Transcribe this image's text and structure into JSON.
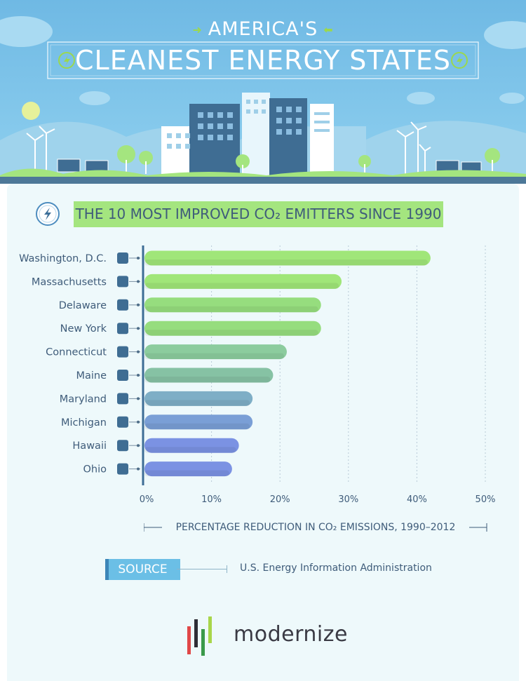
{
  "header": {
    "title_line1": "AMERICA'S",
    "title_line2": "CLEANEST ENERGY STATES"
  },
  "subtitle": "THE 10 MOST IMPROVED CO₂ EMITTERS SINCE 1990",
  "axis_caption": "PERCENTAGE REDUCTION IN CO₂ EMISSIONS, 1990–2012",
  "source": {
    "label": "SOURCE",
    "text": "U.S. Energy Information Administration"
  },
  "brand": "modernize",
  "colors": {
    "sky": "#7ec3e8",
    "panel": "#eef9fb",
    "text": "#3f5c7a",
    "accent_green": "#a4e57f",
    "bar_colors": [
      "#a0e679",
      "#a0e679",
      "#96dd7e",
      "#96dd7e",
      "#8ccc9e",
      "#86c2a4",
      "#7eaec6",
      "#7a9fd6",
      "#7b92e3",
      "#7b92e3"
    ]
  },
  "chart_data": {
    "type": "bar",
    "orientation": "horizontal",
    "categories": [
      "Washington, D.C.",
      "Massachusetts",
      "Delaware",
      "New York",
      "Connecticut",
      "Maine",
      "Maryland",
      "Michigan",
      "Hawaii",
      "Ohio"
    ],
    "values": [
      42,
      29,
      26,
      26,
      21,
      19,
      16,
      16,
      14,
      13
    ],
    "xlabel": "PERCENTAGE REDUCTION IN CO₂ EMISSIONS, 1990–2012",
    "xlim": [
      0,
      50
    ],
    "ticks": [
      "0%",
      "10%",
      "20%",
      "30%",
      "40%",
      "50%"
    ],
    "grid": true,
    "legend": "none"
  }
}
